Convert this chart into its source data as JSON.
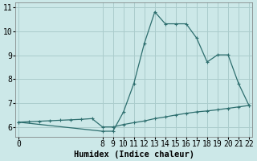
{
  "xlabel": "Humidex (Indice chaleur)",
  "background_color": "#cce8e8",
  "line_color": "#2d6e6e",
  "grid_color": "#aacccc",
  "x_humidex": [
    0,
    8,
    9,
    10,
    11,
    12,
    13,
    14,
    15,
    16,
    17,
    18,
    19,
    20,
    21,
    22
  ],
  "y_humidex": [
    6.2,
    5.82,
    5.82,
    6.62,
    7.82,
    9.5,
    10.82,
    10.32,
    10.32,
    10.32,
    9.72,
    8.72,
    9.02,
    9.02,
    7.82,
    6.9
  ],
  "x_line2": [
    0,
    1,
    2,
    3,
    4,
    5,
    6,
    7,
    8,
    9,
    10,
    11,
    12,
    13,
    14,
    15,
    16,
    17,
    18,
    19,
    20,
    21,
    22
  ],
  "y_line2": [
    6.2,
    6.22,
    6.24,
    6.26,
    6.28,
    6.3,
    6.32,
    6.35,
    6.0,
    6.0,
    6.1,
    6.18,
    6.25,
    6.35,
    6.42,
    6.5,
    6.57,
    6.63,
    6.67,
    6.72,
    6.78,
    6.84,
    6.9
  ],
  "ylim": [
    5.6,
    11.2
  ],
  "xlim": [
    -0.3,
    22.3
  ],
  "yticks": [
    6,
    7,
    8,
    9,
    10,
    11
  ],
  "xticks": [
    0,
    8,
    9,
    10,
    11,
    12,
    13,
    14,
    15,
    16,
    17,
    18,
    19,
    20,
    21,
    22
  ],
  "xlabel_fontsize": 7.5,
  "tick_fontsize": 7
}
